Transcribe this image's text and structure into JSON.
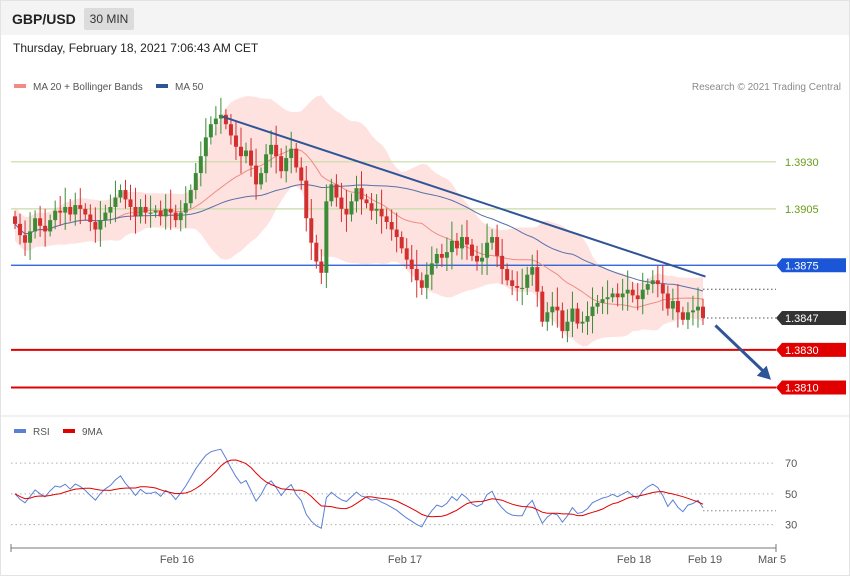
{
  "header": {
    "symbol": "GBP/USD",
    "timeframe": "30 MIN"
  },
  "timestamp": "Thursday, February 18, 2021 7:06:43 AM CET",
  "legend": [
    {
      "label": "MA 20 + Bollinger Bands",
      "color": "#f28b82"
    },
    {
      "label": "MA 50",
      "color": "#2f5597"
    }
  ],
  "credit": "Research © 2021 Trading Central",
  "colors": {
    "up_candle": "#3d8b37",
    "down_candle": "#d32f2f",
    "band_fill": "#fde2e0",
    "ma20": "#f28b82",
    "ma50": "#5a6fa8",
    "trendline": "#2f5597",
    "resistance_green": "#c8dba6",
    "pivot_blue": "#1a56d6",
    "support_red": "#e00000",
    "last_price": "#333333"
  },
  "chart_data": [
    {
      "type": "candlestick",
      "title": "GBP/USD 30 MIN",
      "ylim": [
        1.3797,
        1.3982
      ],
      "x_ticks": [
        "Feb 16",
        "Feb 17",
        "Feb 18",
        "Feb 19",
        "Mar 5"
      ],
      "last_price": 1.3847,
      "price_tags": [
        {
          "label": "1.3875",
          "value": 1.3875,
          "color": "#1a56d6",
          "line": "solid"
        },
        {
          "label": "1.3847",
          "value": 1.3847,
          "color": "#333333",
          "line": "dotted"
        },
        {
          "label": "1.3830",
          "value": 1.383,
          "color": "#e00000",
          "line": "solid"
        },
        {
          "label": "1.3810",
          "value": 1.381,
          "color": "#e00000",
          "line": "solid"
        }
      ],
      "level_labels": [
        {
          "label": "1.3930",
          "value": 1.393
        },
        {
          "label": "1.3905",
          "value": 1.3905
        }
      ],
      "trendline": [
        [
          0.277,
          1.3954
        ],
        [
          0.909,
          1.3869
        ]
      ],
      "forecast_arrow": [
        [
          0.922,
          1.3843
        ],
        [
          1.0,
          1.3812
        ]
      ],
      "closes": [
        1.3897,
        1.3891,
        1.3887,
        1.3893,
        1.39,
        1.3896,
        1.3893,
        1.3899,
        1.3904,
        1.3903,
        1.3906,
        1.3902,
        1.3907,
        1.3905,
        1.3902,
        1.3898,
        1.3894,
        1.3899,
        1.3903,
        1.3906,
        1.3911,
        1.3915,
        1.391,
        1.3906,
        1.3901,
        1.3906,
        1.3903,
        1.3903,
        1.3904,
        1.3901,
        1.3905,
        1.3903,
        1.3899,
        1.3903,
        1.3908,
        1.3915,
        1.3924,
        1.3933,
        1.3943,
        1.395,
        1.3953,
        1.3955,
        1.395,
        1.3944,
        1.3938,
        1.3933,
        1.3936,
        1.3928,
        1.3918,
        1.3924,
        1.3934,
        1.3939,
        1.3933,
        1.3925,
        1.3932,
        1.3937,
        1.3927,
        1.392,
        1.39,
        1.3887,
        1.3877,
        1.3871,
        1.3909,
        1.3918,
        1.3911,
        1.3905,
        1.3902,
        1.3909,
        1.3916,
        1.391,
        1.3908,
        1.3904,
        1.3905,
        1.3901,
        1.3898,
        1.3894,
        1.389,
        1.3884,
        1.3878,
        1.3873,
        1.3867,
        1.3863,
        1.387,
        1.3876,
        1.3881,
        1.3879,
        1.3882,
        1.3888,
        1.3884,
        1.389,
        1.3886,
        1.388,
        1.3877,
        1.3879,
        1.3887,
        1.389,
        1.388,
        1.3873,
        1.3867,
        1.3864,
        1.3863,
        1.3863,
        1.387,
        1.3874,
        1.3861,
        1.3845,
        1.385,
        1.3853,
        1.3851,
        1.384,
        1.3845,
        1.3852,
        1.3844,
        1.3845,
        1.3848,
        1.3853,
        1.3855,
        1.3857,
        1.3858,
        1.386,
        1.3858,
        1.386,
        1.3862,
        1.3859,
        1.3857,
        1.3862,
        1.3865,
        1.3867,
        1.3865,
        1.386,
        1.3852,
        1.3856,
        1.385,
        1.3846,
        1.385,
        1.3851,
        1.3853,
        1.3847
      ],
      "rsi": {
        "ylim": [
          20,
          85
        ],
        "ticks": [
          70,
          50,
          30
        ],
        "legend": [
          {
            "label": "RSI",
            "color": "#5b7fd6"
          },
          {
            "label": "9MA",
            "color": "#e00000"
          }
        ],
        "current": 39
      }
    }
  ]
}
